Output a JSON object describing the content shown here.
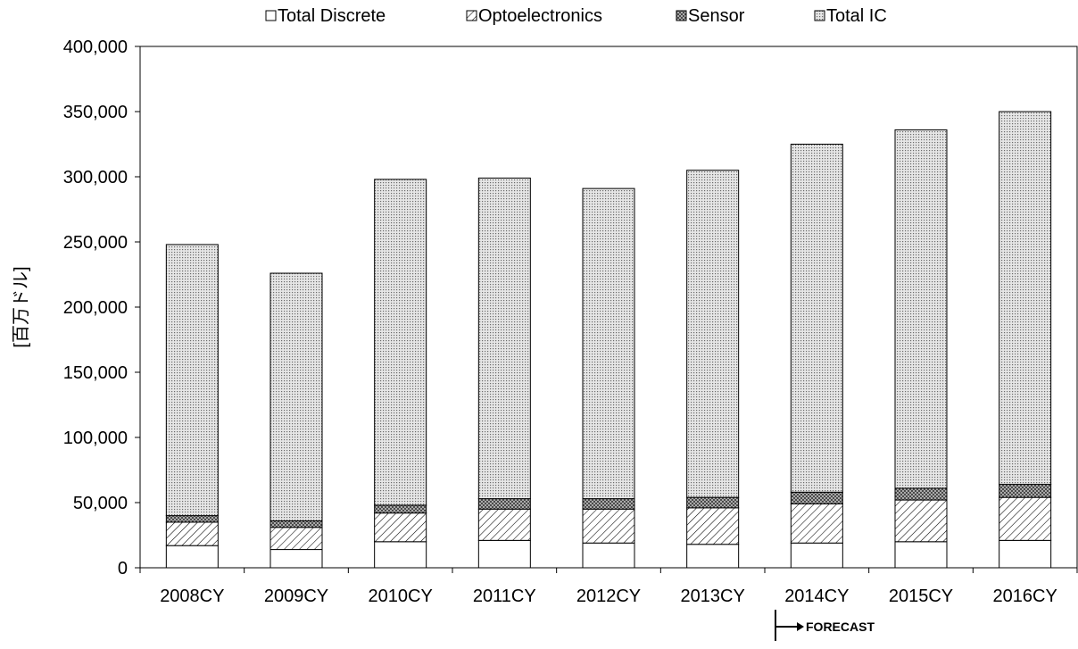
{
  "chart_data": {
    "type": "bar",
    "stacked": true,
    "title": "",
    "xlabel": "",
    "ylabel": "[百万ドル]",
    "ylim": [
      0,
      400000
    ],
    "yticks": [
      "0",
      "50,000",
      "100,000",
      "150,000",
      "200,000",
      "250,000",
      "300,000",
      "350,000",
      "400,000"
    ],
    "grid": false,
    "legend_position": "top",
    "categories": [
      "2008CY",
      "2009CY",
      "2010CY",
      "2011CY",
      "2012CY",
      "2013CY",
      "2014CY",
      "2015CY",
      "2016CY"
    ],
    "series": [
      {
        "name": "Total Discrete",
        "pattern": "white",
        "values": [
          17000,
          14000,
          20000,
          21000,
          19000,
          18000,
          19000,
          20000,
          21000
        ]
      },
      {
        "name": "Optoelectronics",
        "pattern": "diagonal-hatch",
        "values": [
          18000,
          17000,
          22000,
          24000,
          26000,
          28000,
          30000,
          32000,
          33000
        ]
      },
      {
        "name": "Sensor",
        "pattern": "crosshatch",
        "values": [
          5000,
          5000,
          6000,
          8000,
          8000,
          8000,
          9000,
          9000,
          10000
        ]
      },
      {
        "name": "Total IC",
        "pattern": "fine-dots",
        "values": [
          208000,
          190000,
          250000,
          246000,
          238000,
          251000,
          267000,
          275000,
          286000
        ]
      }
    ],
    "annotation": {
      "text": "FORECAST",
      "from_category": "2014CY"
    }
  }
}
